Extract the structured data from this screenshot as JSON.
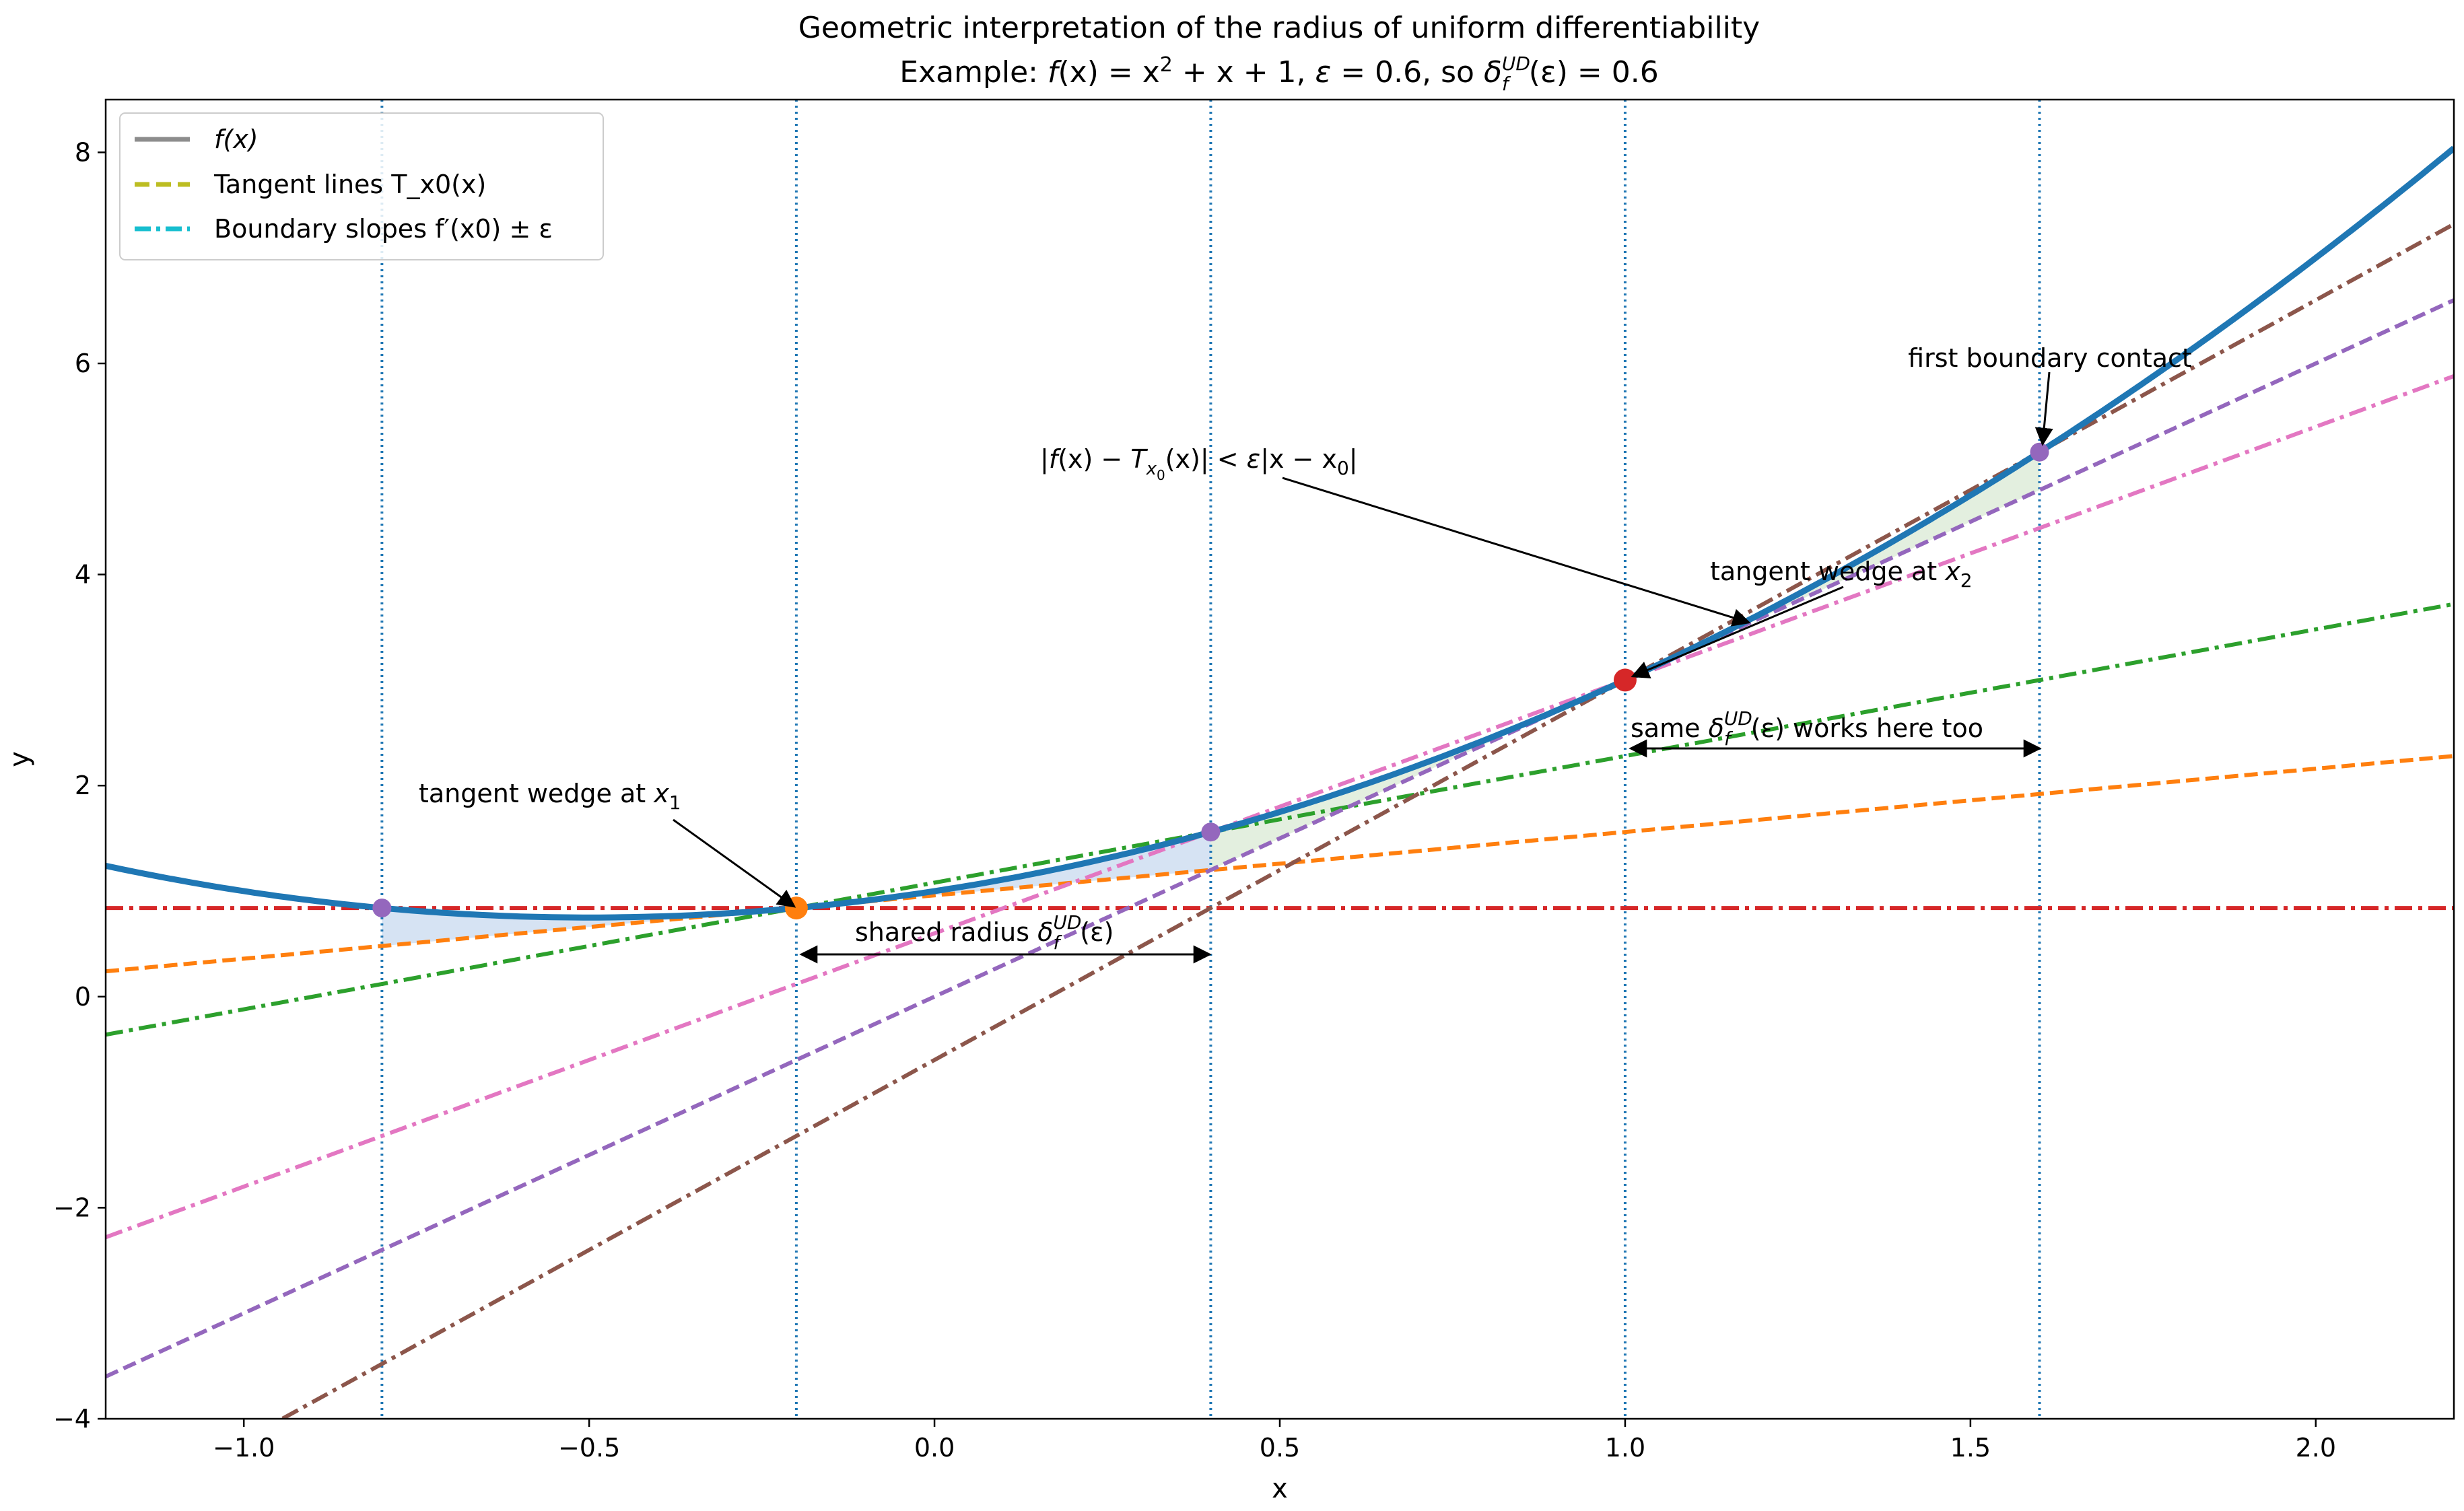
{
  "chart_data": {
    "type": "line",
    "title": "Geometric interpretation of the radius of uniform differentiability",
    "subtitle": {
      "prefix": "Example: ",
      "fx": "f",
      "expr": "(x) = x",
      "exp2": "2",
      "rest": " + x + 1, ",
      "eps": "ε",
      "eps_val": " = 0.6, so ",
      "delta": "δ",
      "sup": "UD",
      "sub": "f",
      "tail": "(ε) = 0.6"
    },
    "xlabel": "x",
    "ylabel": "y",
    "xlim": [
      -1.2,
      2.2
    ],
    "ylim": [
      -4,
      8.5
    ],
    "x_ticks": [
      -1.0,
      -0.5,
      0.0,
      0.5,
      1.0,
      1.5,
      2.0
    ],
    "x_tick_labels": [
      "−1.0",
      "−0.5",
      "0.0",
      "0.5",
      "1.0",
      "1.5",
      "2.0"
    ],
    "y_ticks": [
      -4,
      -2,
      0,
      2,
      4,
      6,
      8
    ],
    "y_tick_labels": [
      "−4",
      "−2",
      "0",
      "2",
      "4",
      "6",
      "8"
    ],
    "grid": false,
    "legend_position": "top-left",
    "legend": [
      {
        "label": "f(x)",
        "style": "solid",
        "color": "#8c8c8c"
      },
      {
        "label": "Tangent lines T_x0(x)",
        "style": "dashed",
        "color": "#bcbd22"
      },
      {
        "label": "Boundary slopes f′(x0) ± ε",
        "style": "dashdot",
        "color": "#17becf"
      }
    ],
    "function": {
      "name": "f(x) = x^2 + x + 1",
      "color": "#1f77b4",
      "x": [
        -1.2,
        2.2
      ]
    },
    "epsilon": 0.6,
    "delta": 0.6,
    "base_points": [
      {
        "x0": -0.2,
        "y0": 0.84,
        "slope": 0.6,
        "point_color": "#ff7f0e",
        "tangent_color": "#ff7f0e",
        "upper_color": "#2ca02c",
        "lower_color": "#d62728"
      },
      {
        "x0": 1.0,
        "y0": 3.0,
        "slope": 3.0,
        "point_color": "#d62728",
        "tangent_color": "#9467bd",
        "upper_color": "#8c564b",
        "lower_color": "#e377c2"
      }
    ],
    "vertical_lines": [
      -0.8,
      -0.2,
      0.4,
      1.0,
      1.6
    ],
    "boundary_points": [
      {
        "x": -0.8,
        "y": 0.84
      },
      {
        "x": 0.4,
        "y": 1.56
      },
      {
        "x": 1.6,
        "y": 5.16
      }
    ],
    "wedges": [
      {
        "x_from": -0.8,
        "x_to": -0.2,
        "x0": -0.2,
        "color": "#aec7e8"
      },
      {
        "x_from": -0.2,
        "x_to": 0.4,
        "x0": -0.2,
        "color": "#aec7e8"
      },
      {
        "x_from": 0.4,
        "x_to": 1.0,
        "x0": 1.0,
        "color": "#c7e0c0"
      },
      {
        "x_from": 1.0,
        "x_to": 1.6,
        "x0": 1.0,
        "color": "#c7e0c0"
      }
    ],
    "annotations": {
      "first_contact": "first boundary contact",
      "inequality": {
        "a": "|",
        "f": "f",
        "b": "(x) − ",
        "T": "T",
        "sub": "x",
        "subsub": "0",
        "c": "(x)| < ",
        "e": "ε",
        "d": "|x − x",
        "z": "0",
        "end": "|"
      },
      "wedge_x2": {
        "text": "tangent wedge at ",
        "var": "x",
        "sub": "2"
      },
      "wedge_x1": {
        "text": "tangent wedge at ",
        "var": "x",
        "sub": "1"
      },
      "shared_radius": {
        "text": "shared radius ",
        "delta": "δ",
        "sup": "UD",
        "sub": "f",
        "tail": "(ε)"
      },
      "same_delta": {
        "pre": "same ",
        "delta": "δ",
        "sup": "UD",
        "sub": "f",
        "tail": "(ε) works here too"
      }
    }
  }
}
